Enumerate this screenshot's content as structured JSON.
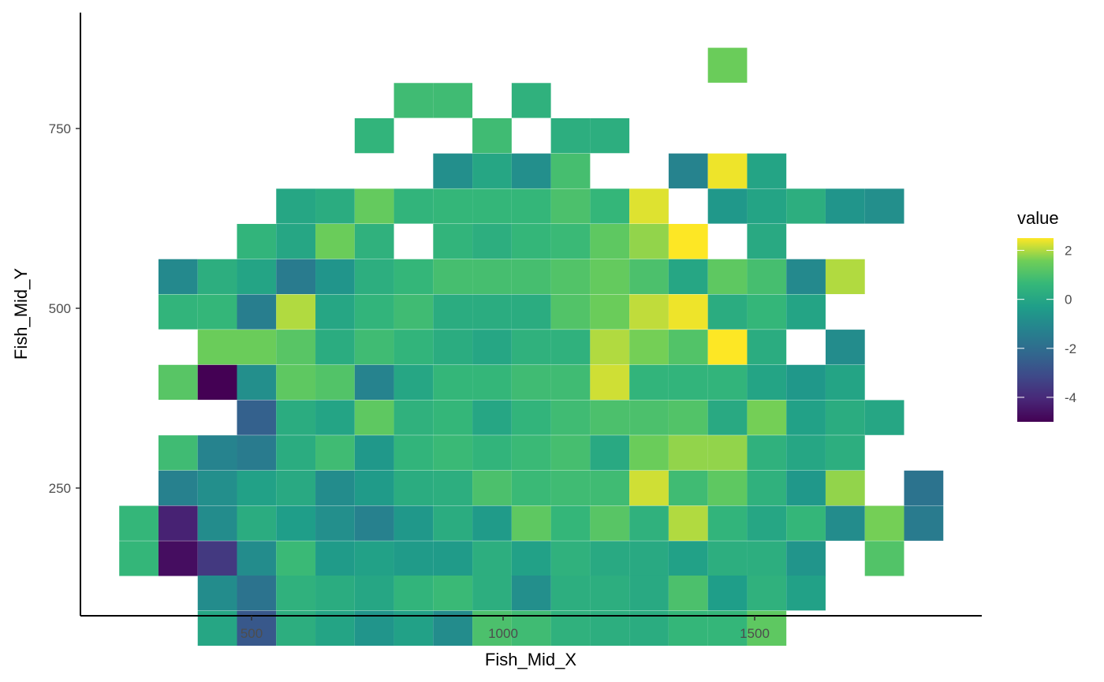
{
  "chart_data": {
    "type": "heatmap",
    "title": "",
    "xlabel": "Fish_Mid_X",
    "ylabel": "Fish_Mid_Y",
    "xlim": [
      107,
      1900
    ],
    "ylim": [
      80,
      1240
    ],
    "x_ticks": [
      500,
      1000,
      1500
    ],
    "y_ticks": [
      250,
      500,
      750
    ],
    "x_tick_labels": [
      "500",
      "1000",
      "1500"
    ],
    "y_tick_labels": [
      "250",
      "500",
      "750"
    ],
    "grid": false,
    "legend": {
      "title": "value",
      "position": "right",
      "min": -5,
      "max": 2.5,
      "ticks": [
        2,
        0,
        -2,
        -4
      ],
      "tick_labels": [
        "2",
        "0",
        "-2",
        "-4"
      ],
      "colormap": "viridis"
    },
    "bin_width_x": 78,
    "bin_width_y": 48.6,
    "x_bin_centers": [
      2.6,
      3.4,
      4.2,
      5.0,
      5.8,
      6.6,
      7.4,
      8.2,
      9.0,
      9.8,
      10.6,
      11.4,
      12.2,
      13.0,
      13.8,
      14.6,
      15.4,
      16.2,
      17.0,
      17.8,
      18.6
    ],
    "y_bin_centers": [
      9.15,
      8.45,
      7.8,
      7.15,
      6.5,
      5.8,
      5.15,
      4.5,
      3.85,
      3.2,
      2.5,
      1.85,
      1.2,
      0.55,
      -0.15,
      -0.8,
      -1.45,
      -2.1
    ],
    "note_units": "",
    "columns_x": [
      276,
      354,
      432,
      510,
      588,
      666,
      744,
      822,
      900,
      978,
      1056,
      1134,
      1212,
      1290,
      1368,
      1446,
      1524,
      1602,
      1680,
      1758,
      1836
    ],
    "rows_y": [
      838,
      789,
      740,
      691,
      642,
      593,
      544,
      495,
      446,
      397,
      348,
      299,
      250,
      201,
      152,
      104,
      55,
      6
    ],
    "cells": [
      {
        "x": 1446,
        "y": 838,
        "value": 1.5
      },
      {
        "x": 822,
        "y": 789,
        "value": 0.8
      },
      {
        "x": 900,
        "y": 789,
        "value": 0.8
      },
      {
        "x": 1056,
        "y": 789,
        "value": 0.4
      },
      {
        "x": 744,
        "y": 740,
        "value": 0.5
      },
      {
        "x": 978,
        "y": 740,
        "value": 0.8
      },
      {
        "x": 1134,
        "y": 740,
        "value": 0.3
      },
      {
        "x": 1212,
        "y": 740,
        "value": 0.3
      },
      {
        "x": 900,
        "y": 691,
        "value": -0.8
      },
      {
        "x": 978,
        "y": 691,
        "value": 0.0
      },
      {
        "x": 1056,
        "y": 691,
        "value": -0.8
      },
      {
        "x": 1134,
        "y": 691,
        "value": 0.9
      },
      {
        "x": 1368,
        "y": 691,
        "value": -1.2
      },
      {
        "x": 1446,
        "y": 691,
        "value": 2.4
      },
      {
        "x": 1524,
        "y": 691,
        "value": -0.1
      },
      {
        "x": 588,
        "y": 642,
        "value": 0.0
      },
      {
        "x": 666,
        "y": 642,
        "value": 0.2
      },
      {
        "x": 744,
        "y": 642,
        "value": 1.4
      },
      {
        "x": 822,
        "y": 642,
        "value": 0.5
      },
      {
        "x": 900,
        "y": 642,
        "value": 0.6
      },
      {
        "x": 978,
        "y": 642,
        "value": 0.6
      },
      {
        "x": 1056,
        "y": 642,
        "value": 0.6
      },
      {
        "x": 1134,
        "y": 642,
        "value": 1.0
      },
      {
        "x": 1212,
        "y": 642,
        "value": 0.6
      },
      {
        "x": 1290,
        "y": 642,
        "value": 2.3
      },
      {
        "x": 1446,
        "y": 642,
        "value": -0.5
      },
      {
        "x": 1524,
        "y": 642,
        "value": -0.1
      },
      {
        "x": 1602,
        "y": 642,
        "value": 0.3
      },
      {
        "x": 1680,
        "y": 642,
        "value": -0.6
      },
      {
        "x": 1758,
        "y": 642,
        "value": -0.8
      },
      {
        "x": 510,
        "y": 593,
        "value": 0.5
      },
      {
        "x": 588,
        "y": 593,
        "value": 0.0
      },
      {
        "x": 666,
        "y": 593,
        "value": 1.5
      },
      {
        "x": 744,
        "y": 593,
        "value": 0.4
      },
      {
        "x": 900,
        "y": 593,
        "value": 0.5
      },
      {
        "x": 978,
        "y": 593,
        "value": 0.3
      },
      {
        "x": 1056,
        "y": 593,
        "value": 0.6
      },
      {
        "x": 1134,
        "y": 593,
        "value": 0.7
      },
      {
        "x": 1212,
        "y": 593,
        "value": 1.3
      },
      {
        "x": 1290,
        "y": 593,
        "value": 1.8
      },
      {
        "x": 1368,
        "y": 593,
        "value": 2.6
      },
      {
        "x": 1524,
        "y": 593,
        "value": 0.1
      },
      {
        "x": 354,
        "y": 544,
        "value": -1.0
      },
      {
        "x": 432,
        "y": 544,
        "value": 0.3
      },
      {
        "x": 510,
        "y": 544,
        "value": -0.1
      },
      {
        "x": 588,
        "y": 544,
        "value": -1.5
      },
      {
        "x": 666,
        "y": 544,
        "value": -0.6
      },
      {
        "x": 744,
        "y": 544,
        "value": 0.3
      },
      {
        "x": 822,
        "y": 544,
        "value": 0.6
      },
      {
        "x": 900,
        "y": 544,
        "value": 0.9
      },
      {
        "x": 978,
        "y": 544,
        "value": 0.9
      },
      {
        "x": 1056,
        "y": 544,
        "value": 0.9
      },
      {
        "x": 1134,
        "y": 544,
        "value": 1.1
      },
      {
        "x": 1212,
        "y": 544,
        "value": 1.4
      },
      {
        "x": 1290,
        "y": 544,
        "value": 1.0
      },
      {
        "x": 1368,
        "y": 544,
        "value": 0.0
      },
      {
        "x": 1446,
        "y": 544,
        "value": 1.3
      },
      {
        "x": 1524,
        "y": 544,
        "value": 0.9
      },
      {
        "x": 1602,
        "y": 544,
        "value": -1.0
      },
      {
        "x": 1680,
        "y": 544,
        "value": 2.0
      },
      {
        "x": 354,
        "y": 495,
        "value": 0.5
      },
      {
        "x": 432,
        "y": 495,
        "value": 0.6
      },
      {
        "x": 510,
        "y": 495,
        "value": -1.4
      },
      {
        "x": 588,
        "y": 495,
        "value": 2.0
      },
      {
        "x": 666,
        "y": 495,
        "value": 0.0
      },
      {
        "x": 744,
        "y": 495,
        "value": 0.5
      },
      {
        "x": 822,
        "y": 495,
        "value": 0.8
      },
      {
        "x": 900,
        "y": 495,
        "value": 0.2
      },
      {
        "x": 978,
        "y": 495,
        "value": 0.2
      },
      {
        "x": 1056,
        "y": 495,
        "value": 0.2
      },
      {
        "x": 1134,
        "y": 495,
        "value": 1.1
      },
      {
        "x": 1212,
        "y": 495,
        "value": 1.5
      },
      {
        "x": 1290,
        "y": 495,
        "value": 2.1
      },
      {
        "x": 1368,
        "y": 495,
        "value": 2.4
      },
      {
        "x": 1446,
        "y": 495,
        "value": 0.2
      },
      {
        "x": 1524,
        "y": 495,
        "value": 0.6
      },
      {
        "x": 1602,
        "y": 495,
        "value": -0.1
      },
      {
        "x": 432,
        "y": 446,
        "value": 1.5
      },
      {
        "x": 510,
        "y": 446,
        "value": 1.5
      },
      {
        "x": 588,
        "y": 446,
        "value": 1.2
      },
      {
        "x": 666,
        "y": 446,
        "value": 0.2
      },
      {
        "x": 744,
        "y": 446,
        "value": 0.8
      },
      {
        "x": 822,
        "y": 446,
        "value": 0.5
      },
      {
        "x": 900,
        "y": 446,
        "value": 0.2
      },
      {
        "x": 978,
        "y": 446,
        "value": 0.0
      },
      {
        "x": 1056,
        "y": 446,
        "value": 0.4
      },
      {
        "x": 1134,
        "y": 446,
        "value": 0.4
      },
      {
        "x": 1212,
        "y": 446,
        "value": 2.0
      },
      {
        "x": 1290,
        "y": 446,
        "value": 1.6
      },
      {
        "x": 1368,
        "y": 446,
        "value": 1.1
      },
      {
        "x": 1446,
        "y": 446,
        "value": 2.6
      },
      {
        "x": 1524,
        "y": 446,
        "value": 0.2
      },
      {
        "x": 1680,
        "y": 446,
        "value": -0.9
      },
      {
        "x": 354,
        "y": 397,
        "value": 1.2
      },
      {
        "x": 432,
        "y": 397,
        "value": -5.0
      },
      {
        "x": 510,
        "y": 397,
        "value": -0.8
      },
      {
        "x": 588,
        "y": 397,
        "value": 1.3
      },
      {
        "x": 666,
        "y": 397,
        "value": 1.1
      },
      {
        "x": 744,
        "y": 397,
        "value": -1.2
      },
      {
        "x": 822,
        "y": 397,
        "value": 0.0
      },
      {
        "x": 900,
        "y": 397,
        "value": 0.6
      },
      {
        "x": 978,
        "y": 397,
        "value": 0.6
      },
      {
        "x": 1056,
        "y": 397,
        "value": 0.8
      },
      {
        "x": 1134,
        "y": 397,
        "value": 0.8
      },
      {
        "x": 1212,
        "y": 397,
        "value": 2.2
      },
      {
        "x": 1290,
        "y": 397,
        "value": 0.5
      },
      {
        "x": 1368,
        "y": 397,
        "value": 0.5
      },
      {
        "x": 1446,
        "y": 397,
        "value": 0.5
      },
      {
        "x": 1524,
        "y": 397,
        "value": -0.1
      },
      {
        "x": 1602,
        "y": 397,
        "value": -0.5
      },
      {
        "x": 1680,
        "y": 397,
        "value": -0.1
      },
      {
        "x": 510,
        "y": 348,
        "value": -2.4
      },
      {
        "x": 588,
        "y": 348,
        "value": 0.2
      },
      {
        "x": 666,
        "y": 348,
        "value": -0.1
      },
      {
        "x": 744,
        "y": 348,
        "value": 1.3
      },
      {
        "x": 822,
        "y": 348,
        "value": 0.4
      },
      {
        "x": 900,
        "y": 348,
        "value": 0.6
      },
      {
        "x": 978,
        "y": 348,
        "value": 0.0
      },
      {
        "x": 1056,
        "y": 348,
        "value": 0.5
      },
      {
        "x": 1134,
        "y": 348,
        "value": 0.8
      },
      {
        "x": 1212,
        "y": 348,
        "value": 1.0
      },
      {
        "x": 1290,
        "y": 348,
        "value": 1.0
      },
      {
        "x": 1368,
        "y": 348,
        "value": 1.1
      },
      {
        "x": 1446,
        "y": 348,
        "value": 0.1
      },
      {
        "x": 1524,
        "y": 348,
        "value": 1.6
      },
      {
        "x": 1602,
        "y": 348,
        "value": -0.2
      },
      {
        "x": 1680,
        "y": 348,
        "value": 0.2
      },
      {
        "x": 1758,
        "y": 348,
        "value": 0.0
      },
      {
        "x": 354,
        "y": 299,
        "value": 0.8
      },
      {
        "x": 432,
        "y": 299,
        "value": -1.2
      },
      {
        "x": 510,
        "y": 299,
        "value": -1.5
      },
      {
        "x": 588,
        "y": 299,
        "value": 0.2
      },
      {
        "x": 666,
        "y": 299,
        "value": 0.8
      },
      {
        "x": 744,
        "y": 299,
        "value": -0.5
      },
      {
        "x": 822,
        "y": 299,
        "value": 0.5
      },
      {
        "x": 900,
        "y": 299,
        "value": 0.7
      },
      {
        "x": 978,
        "y": 299,
        "value": 0.5
      },
      {
        "x": 1056,
        "y": 299,
        "value": 0.7
      },
      {
        "x": 1134,
        "y": 299,
        "value": 0.9
      },
      {
        "x": 1212,
        "y": 299,
        "value": 0.1
      },
      {
        "x": 1290,
        "y": 299,
        "value": 1.5
      },
      {
        "x": 1368,
        "y": 299,
        "value": 1.8
      },
      {
        "x": 1446,
        "y": 299,
        "value": 1.8
      },
      {
        "x": 1524,
        "y": 299,
        "value": 0.4
      },
      {
        "x": 1602,
        "y": 299,
        "value": 0.0
      },
      {
        "x": 1680,
        "y": 299,
        "value": 0.3
      },
      {
        "x": 354,
        "y": 250,
        "value": -1.3
      },
      {
        "x": 432,
        "y": 250,
        "value": -0.8
      },
      {
        "x": 510,
        "y": 250,
        "value": -0.2
      },
      {
        "x": 588,
        "y": 250,
        "value": 0.1
      },
      {
        "x": 666,
        "y": 250,
        "value": -0.9
      },
      {
        "x": 744,
        "y": 250,
        "value": -0.4
      },
      {
        "x": 822,
        "y": 250,
        "value": 0.2
      },
      {
        "x": 900,
        "y": 250,
        "value": 0.3
      },
      {
        "x": 978,
        "y": 250,
        "value": 1.0
      },
      {
        "x": 1056,
        "y": 250,
        "value": 0.7
      },
      {
        "x": 1134,
        "y": 250,
        "value": 0.8
      },
      {
        "x": 1212,
        "y": 250,
        "value": 0.8
      },
      {
        "x": 1290,
        "y": 250,
        "value": 2.2
      },
      {
        "x": 1368,
        "y": 250,
        "value": 0.8
      },
      {
        "x": 1446,
        "y": 250,
        "value": 1.3
      },
      {
        "x": 1524,
        "y": 250,
        "value": 0.4
      },
      {
        "x": 1602,
        "y": 250,
        "value": -0.5
      },
      {
        "x": 1680,
        "y": 250,
        "value": 1.8
      },
      {
        "x": 1836,
        "y": 250,
        "value": -1.8
      },
      {
        "x": 276,
        "y": 201,
        "value": 0.6
      },
      {
        "x": 354,
        "y": 201,
        "value": -4.2
      },
      {
        "x": 432,
        "y": 201,
        "value": -0.9
      },
      {
        "x": 510,
        "y": 201,
        "value": 0.2
      },
      {
        "x": 588,
        "y": 201,
        "value": -0.3
      },
      {
        "x": 666,
        "y": 201,
        "value": -0.8
      },
      {
        "x": 744,
        "y": 201,
        "value": -1.3
      },
      {
        "x": 822,
        "y": 201,
        "value": -0.5
      },
      {
        "x": 900,
        "y": 201,
        "value": 0.2
      },
      {
        "x": 978,
        "y": 201,
        "value": -0.4
      },
      {
        "x": 1056,
        "y": 201,
        "value": 1.3
      },
      {
        "x": 1134,
        "y": 201,
        "value": 0.6
      },
      {
        "x": 1212,
        "y": 201,
        "value": 1.2
      },
      {
        "x": 1290,
        "y": 201,
        "value": 0.4
      },
      {
        "x": 1368,
        "y": 201,
        "value": 2.0
      },
      {
        "x": 1446,
        "y": 201,
        "value": 0.5
      },
      {
        "x": 1524,
        "y": 201,
        "value": 0.0
      },
      {
        "x": 1602,
        "y": 201,
        "value": 0.6
      },
      {
        "x": 1680,
        "y": 201,
        "value": -0.9
      },
      {
        "x": 1758,
        "y": 201,
        "value": 1.6
      },
      {
        "x": 1836,
        "y": 201,
        "value": -1.5
      },
      {
        "x": 276,
        "y": 152,
        "value": 0.6
      },
      {
        "x": 354,
        "y": 152,
        "value": -4.7
      },
      {
        "x": 432,
        "y": 152,
        "value": -3.6
      },
      {
        "x": 510,
        "y": 152,
        "value": -0.9
      },
      {
        "x": 588,
        "y": 152,
        "value": 0.7
      },
      {
        "x": 666,
        "y": 152,
        "value": -0.4
      },
      {
        "x": 744,
        "y": 152,
        "value": -0.2
      },
      {
        "x": 822,
        "y": 152,
        "value": -0.4
      },
      {
        "x": 900,
        "y": 152,
        "value": -0.4
      },
      {
        "x": 978,
        "y": 152,
        "value": 0.3
      },
      {
        "x": 1056,
        "y": 152,
        "value": -0.2
      },
      {
        "x": 1134,
        "y": 152,
        "value": 0.4
      },
      {
        "x": 1212,
        "y": 152,
        "value": 0.1
      },
      {
        "x": 1290,
        "y": 152,
        "value": 0.1
      },
      {
        "x": 1368,
        "y": 152,
        "value": -0.2
      },
      {
        "x": 1446,
        "y": 152,
        "value": 0.3
      },
      {
        "x": 1524,
        "y": 152,
        "value": 0.3
      },
      {
        "x": 1602,
        "y": 152,
        "value": -0.6
      },
      {
        "x": 1758,
        "y": 152,
        "value": 1.1
      },
      {
        "x": 432,
        "y": 104,
        "value": -0.9
      },
      {
        "x": 510,
        "y": 104,
        "value": -1.8
      },
      {
        "x": 588,
        "y": 104,
        "value": 0.4
      },
      {
        "x": 666,
        "y": 104,
        "value": 0.2
      },
      {
        "x": 744,
        "y": 104,
        "value": 0.0
      },
      {
        "x": 822,
        "y": 104,
        "value": 0.5
      },
      {
        "x": 900,
        "y": 104,
        "value": 0.7
      },
      {
        "x": 978,
        "y": 104,
        "value": 0.3
      },
      {
        "x": 1056,
        "y": 104,
        "value": -0.8
      },
      {
        "x": 1134,
        "y": 104,
        "value": 0.3
      },
      {
        "x": 1212,
        "y": 104,
        "value": 0.3
      },
      {
        "x": 1290,
        "y": 104,
        "value": 0.1
      },
      {
        "x": 1368,
        "y": 104,
        "value": 1.0
      },
      {
        "x": 1446,
        "y": 104,
        "value": -0.3
      },
      {
        "x": 1524,
        "y": 104,
        "value": 0.4
      },
      {
        "x": 1602,
        "y": 104,
        "value": -0.2
      },
      {
        "x": 432,
        "y": 55,
        "value": 0.0
      },
      {
        "x": 510,
        "y": 55,
        "value": -2.7
      },
      {
        "x": 588,
        "y": 55,
        "value": 0.3
      },
      {
        "x": 666,
        "y": 55,
        "value": -0.1
      },
      {
        "x": 744,
        "y": 55,
        "value": -0.6
      },
      {
        "x": 822,
        "y": 55,
        "value": -0.2
      },
      {
        "x": 900,
        "y": 55,
        "value": -0.9
      },
      {
        "x": 978,
        "y": 55,
        "value": 1.0
      },
      {
        "x": 1056,
        "y": 55,
        "value": 0.8
      },
      {
        "x": 1134,
        "y": 55,
        "value": 0.4
      },
      {
        "x": 1212,
        "y": 55,
        "value": 0.3
      },
      {
        "x": 1290,
        "y": 55,
        "value": 0.2
      },
      {
        "x": 1368,
        "y": 55,
        "value": 0.6
      },
      {
        "x": 1446,
        "y": 55,
        "value": 0.6
      },
      {
        "x": 1524,
        "y": 55,
        "value": 1.3
      }
    ]
  }
}
